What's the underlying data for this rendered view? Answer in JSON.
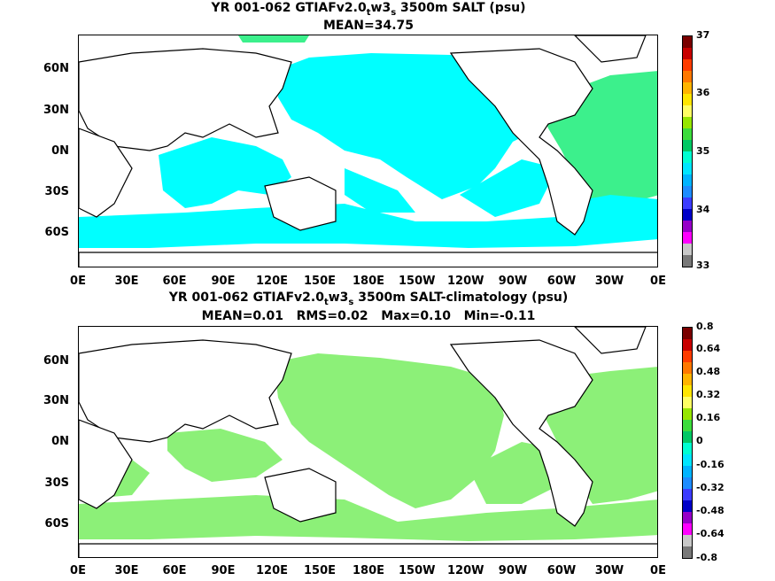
{
  "top": {
    "title_prefix": "YR 001-062 GTIAFv2.0",
    "title_sub1": "t",
    "title_mid": "w3",
    "title_sub2": "s",
    "title_suffix": " 3500m SALT (psu)",
    "subtitle": "MEAN=34.75",
    "colorbar_labels": [
      "37",
      "36",
      "35",
      "34",
      "33"
    ],
    "colorbar_colors": [
      "#7a0000",
      "#c80000",
      "#ff3c00",
      "#ff7800",
      "#ffb400",
      "#ffe600",
      "#ffff64",
      "#96e600",
      "#3cdc3c",
      "#00c864",
      "#00ffd2",
      "#00e6ff",
      "#00b4ff",
      "#1e8cff",
      "#3c3cff",
      "#0000c8",
      "#9600c8",
      "#ff00ff",
      "#c8c8c8",
      "#787878"
    ]
  },
  "bottom": {
    "title_prefix": "YR 001-062 GTIAFv2.0",
    "title_sub1": "t",
    "title_mid": "w3",
    "title_sub2": "s",
    "title_suffix": " 3500m SALT-climatology (psu)",
    "subtitle": "MEAN=0.01   RMS=0.02   Max=0.10   Min=-0.11",
    "colorbar_labels": [
      "0.8",
      "0.64",
      "0.48",
      "0.32",
      "0.16",
      "0",
      "-0.16",
      "-0.32",
      "-0.48",
      "-0.64",
      "-0.8"
    ],
    "colorbar_colors": [
      "#7a0000",
      "#c80000",
      "#ff3c00",
      "#ff7800",
      "#ffb400",
      "#ffe600",
      "#ffff64",
      "#96e600",
      "#3cdc3c",
      "#00c864",
      "#00ffd2",
      "#00e6ff",
      "#00b4ff",
      "#1e8cff",
      "#3c3cff",
      "#0000c8",
      "#9600c8",
      "#ff00ff",
      "#c8c8c8",
      "#787878"
    ]
  },
  "lat_labels": [
    "60N",
    "30N",
    "0N",
    "30S",
    "60S"
  ],
  "lon_labels": [
    "0E",
    "30E",
    "60E",
    "90E",
    "120E",
    "150E",
    "180E",
    "150W",
    "120W",
    "90W",
    "60W",
    "30W",
    "0E"
  ],
  "colors": {
    "fill_top_main": "#00ffff",
    "fill_top_atlantic": "#3cf08c",
    "fill_bottom": "#8cf078",
    "land": "#ffffff",
    "coast": "#000000"
  }
}
